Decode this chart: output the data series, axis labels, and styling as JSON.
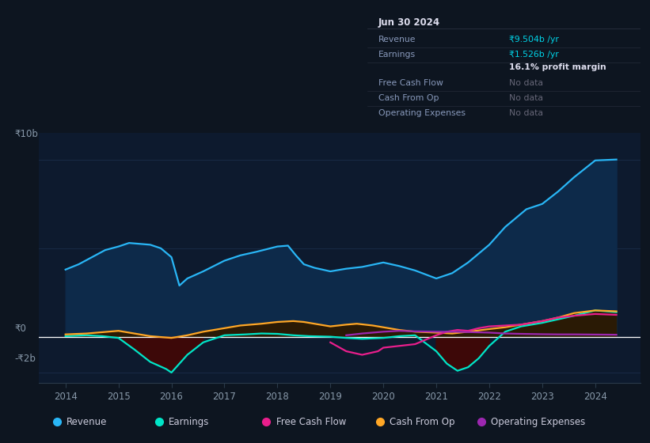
{
  "bg_color": "#0d1520",
  "plot_bg_color": "#0d1a2e",
  "ylabel_top": "₹10b",
  "ylabel_zero": "₹0",
  "ylabel_bottom": "-₹2b",
  "x_ticks": [
    2014,
    2015,
    2016,
    2017,
    2018,
    2019,
    2020,
    2021,
    2022,
    2023,
    2024
  ],
  "xlim": [
    2013.5,
    2024.85
  ],
  "ylim": [
    -2600000000.0,
    11500000000.0
  ],
  "info_title": "Jun 30 2024",
  "info_rows": [
    {
      "label": "Revenue",
      "value": "₹9.504b /yr",
      "vcolor": "#00d4e8"
    },
    {
      "label": "Earnings",
      "value": "₹1.526b /yr",
      "vcolor": "#00d4e8"
    },
    {
      "label": "",
      "value": "16.1% profit margin",
      "vcolor": "#ffffff",
      "bold": true
    },
    {
      "label": "Free Cash Flow",
      "value": "No data",
      "vcolor": "#666677"
    },
    {
      "label": "Cash From Op",
      "value": "No data",
      "vcolor": "#666677"
    },
    {
      "label": "Operating Expenses",
      "value": "No data",
      "vcolor": "#666677"
    }
  ],
  "revenue_x": [
    2014.0,
    2014.25,
    2014.5,
    2014.75,
    2015.0,
    2015.2,
    2015.4,
    2015.6,
    2015.8,
    2016.0,
    2016.15,
    2016.3,
    2016.6,
    2017.0,
    2017.3,
    2017.6,
    2018.0,
    2018.2,
    2018.35,
    2018.5,
    2018.7,
    2019.0,
    2019.3,
    2019.6,
    2020.0,
    2020.3,
    2020.6,
    2021.0,
    2021.3,
    2021.6,
    2022.0,
    2022.3,
    2022.7,
    2023.0,
    2023.3,
    2023.6,
    2024.0,
    2024.4
  ],
  "revenue_y": [
    3800000000.0,
    4100000000.0,
    4500000000.0,
    4900000000.0,
    5100000000.0,
    5300000000.0,
    5250000000.0,
    5200000000.0,
    5000000000.0,
    4500000000.0,
    2900000000.0,
    3300000000.0,
    3700000000.0,
    4300000000.0,
    4600000000.0,
    4800000000.0,
    5100000000.0,
    5150000000.0,
    4600000000.0,
    4100000000.0,
    3900000000.0,
    3700000000.0,
    3850000000.0,
    3950000000.0,
    4200000000.0,
    4000000000.0,
    3750000000.0,
    3300000000.0,
    3600000000.0,
    4200000000.0,
    5200000000.0,
    6200000000.0,
    7200000000.0,
    7500000000.0,
    8200000000.0,
    9000000000.0,
    9950000000.0,
    10000000000.0
  ],
  "earnings_x": [
    2014.0,
    2014.4,
    2014.7,
    2015.0,
    2015.3,
    2015.6,
    2015.9,
    2016.0,
    2016.3,
    2016.6,
    2017.0,
    2017.4,
    2017.7,
    2018.0,
    2018.3,
    2018.6,
    2019.0,
    2019.3,
    2019.6,
    2020.0,
    2020.3,
    2020.6,
    2021.0,
    2021.2,
    2021.4,
    2021.6,
    2021.8,
    2022.0,
    2022.3,
    2022.6,
    2023.0,
    2023.3,
    2023.6,
    2024.0,
    2024.4
  ],
  "earnings_y": [
    50000000.0,
    100000000.0,
    50000000.0,
    -50000000.0,
    -700000000.0,
    -1400000000.0,
    -1800000000.0,
    -2000000000.0,
    -1000000000.0,
    -300000000.0,
    100000000.0,
    150000000.0,
    200000000.0,
    180000000.0,
    100000000.0,
    50000000.0,
    20000000.0,
    -50000000.0,
    -100000000.0,
    -50000000.0,
    50000000.0,
    100000000.0,
    -800000000.0,
    -1500000000.0,
    -1900000000.0,
    -1700000000.0,
    -1200000000.0,
    -500000000.0,
    300000000.0,
    600000000.0,
    800000000.0,
    1000000000.0,
    1200000000.0,
    1500000000.0,
    1400000000.0
  ],
  "cash_from_op_x": [
    2014.0,
    2014.4,
    2014.8,
    2015.0,
    2015.3,
    2015.6,
    2016.0,
    2016.3,
    2016.6,
    2017.0,
    2017.3,
    2017.7,
    2018.0,
    2018.3,
    2018.5,
    2018.8,
    2019.0,
    2019.3,
    2019.5,
    2019.8,
    2020.0,
    2020.3,
    2020.6,
    2021.0,
    2021.3,
    2021.6,
    2022.0,
    2022.3,
    2022.6,
    2023.0,
    2023.3,
    2023.6,
    2024.0,
    2024.4
  ],
  "cash_from_op_y": [
    150000000.0,
    200000000.0,
    300000000.0,
    350000000.0,
    200000000.0,
    50000000.0,
    -50000000.0,
    100000000.0,
    300000000.0,
    500000000.0,
    650000000.0,
    750000000.0,
    850000000.0,
    900000000.0,
    850000000.0,
    700000000.0,
    600000000.0,
    700000000.0,
    750000000.0,
    650000000.0,
    550000000.0,
    400000000.0,
    300000000.0,
    250000000.0,
    200000000.0,
    300000000.0,
    450000000.0,
    550000000.0,
    700000000.0,
    900000000.0,
    1100000000.0,
    1350000000.0,
    1500000000.0,
    1450000000.0
  ],
  "free_cash_flow_x": [
    2019.0,
    2019.3,
    2019.6,
    2019.9,
    2020.0,
    2020.3,
    2020.6,
    2021.0,
    2021.2,
    2021.4,
    2021.6,
    2021.8,
    2022.0,
    2022.3,
    2022.6,
    2023.0,
    2023.3,
    2023.6,
    2024.0,
    2024.4
  ],
  "free_cash_flow_y": [
    -300000000.0,
    -800000000.0,
    -1000000000.0,
    -800000000.0,
    -600000000.0,
    -500000000.0,
    -400000000.0,
    100000000.0,
    300000000.0,
    400000000.0,
    350000000.0,
    500000000.0,
    600000000.0,
    650000000.0,
    700000000.0,
    900000000.0,
    1100000000.0,
    1200000000.0,
    1300000000.0,
    1250000000.0
  ],
  "operating_expenses_x": [
    2019.3,
    2019.6,
    2020.0,
    2020.3,
    2020.6,
    2021.0,
    2021.3,
    2021.6,
    2022.0,
    2022.3,
    2022.6,
    2023.0,
    2023.3,
    2023.6,
    2024.0,
    2024.4
  ],
  "operating_expenses_y": [
    100000000.0,
    200000000.0,
    300000000.0,
    350000000.0,
    320000000.0,
    300000000.0,
    300000000.0,
    280000000.0,
    250000000.0,
    200000000.0,
    180000000.0,
    160000000.0,
    150000000.0,
    150000000.0,
    140000000.0,
    130000000.0
  ],
  "revenue_color": "#29b6f6",
  "revenue_fill": "#0d2a4a",
  "earnings_color": "#00e5c8",
  "earnings_fill_pos": "#0d3030",
  "earnings_fill_neg": "#3d0808",
  "cash_from_op_color": "#ffa726",
  "cash_from_op_fill": "#2a1a05",
  "free_cash_flow_color": "#e91e8c",
  "operating_expenses_color": "#9c27b0",
  "legend": [
    {
      "label": "Revenue",
      "color": "#29b6f6"
    },
    {
      "label": "Earnings",
      "color": "#00e5c8"
    },
    {
      "label": "Free Cash Flow",
      "color": "#e91e8c"
    },
    {
      "label": "Cash From Op",
      "color": "#ffa726"
    },
    {
      "label": "Operating Expenses",
      "color": "#9c27b0"
    }
  ]
}
